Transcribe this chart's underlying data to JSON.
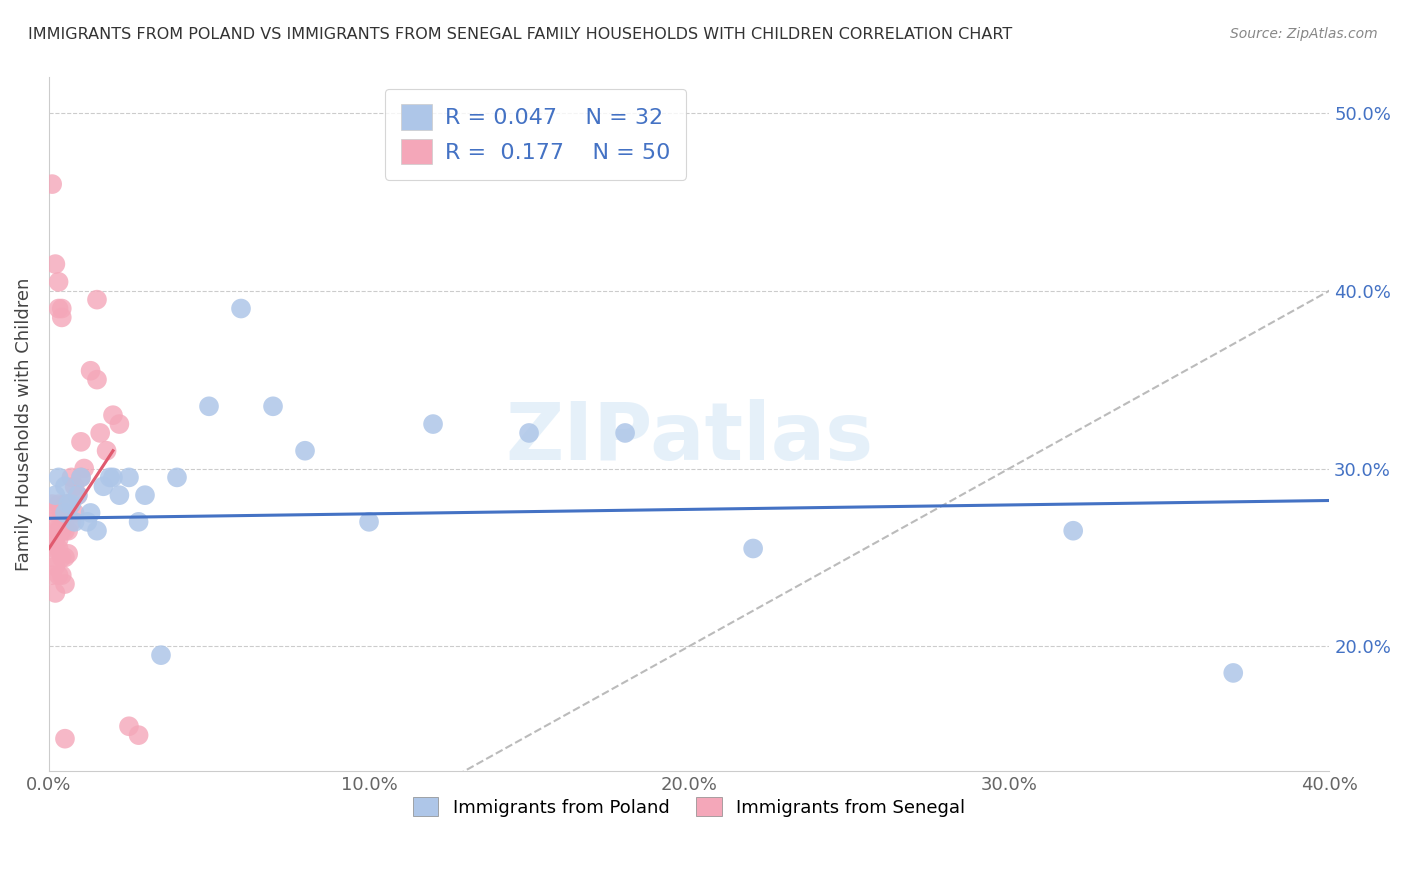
{
  "title": "IMMIGRANTS FROM POLAND VS IMMIGRANTS FROM SENEGAL FAMILY HOUSEHOLDS WITH CHILDREN CORRELATION CHART",
  "source": "Source: ZipAtlas.com",
  "ylabel": "Family Households with Children",
  "xlim": [
    0.0,
    0.4
  ],
  "ylim": [
    0.13,
    0.52
  ],
  "xticks": [
    0.0,
    0.1,
    0.2,
    0.3,
    0.4
  ],
  "yticks": [
    0.2,
    0.3,
    0.4,
    0.5
  ],
  "xtick_labels": [
    "0.0%",
    "10.0%",
    "20.0%",
    "30.0%",
    "40.0%"
  ],
  "ytick_labels": [
    "20.0%",
    "30.0%",
    "40.0%",
    "50.0%"
  ],
  "poland_color": "#aec6e8",
  "senegal_color": "#f4a7b9",
  "poland_line_color": "#4472c4",
  "senegal_line_color": "#e05a6e",
  "legend_R_poland": "0.047",
  "legend_N_poland": "32",
  "legend_R_senegal": "0.177",
  "legend_N_senegal": "50",
  "legend_label_poland": "Immigrants from Poland",
  "legend_label_senegal": "Immigrants from Senegal",
  "poland_scatter_x": [
    0.002,
    0.003,
    0.005,
    0.005,
    0.006,
    0.007,
    0.008,
    0.009,
    0.01,
    0.012,
    0.013,
    0.015,
    0.017,
    0.019,
    0.02,
    0.022,
    0.025,
    0.028,
    0.03,
    0.035,
    0.04,
    0.05,
    0.06,
    0.07,
    0.08,
    0.1,
    0.12,
    0.15,
    0.18,
    0.22,
    0.32,
    0.37
  ],
  "poland_scatter_y": [
    0.285,
    0.295,
    0.275,
    0.29,
    0.28,
    0.28,
    0.27,
    0.285,
    0.295,
    0.27,
    0.275,
    0.265,
    0.29,
    0.295,
    0.295,
    0.285,
    0.295,
    0.27,
    0.285,
    0.195,
    0.295,
    0.335,
    0.39,
    0.335,
    0.31,
    0.27,
    0.325,
    0.32,
    0.32,
    0.255,
    0.265,
    0.185
  ],
  "senegal_scatter_x": [
    0.001,
    0.001,
    0.001,
    0.001,
    0.002,
    0.002,
    0.002,
    0.002,
    0.002,
    0.002,
    0.003,
    0.003,
    0.003,
    0.003,
    0.003,
    0.004,
    0.004,
    0.004,
    0.004,
    0.005,
    0.005,
    0.005,
    0.005,
    0.006,
    0.006,
    0.006,
    0.007,
    0.007,
    0.008,
    0.008,
    0.009,
    0.01,
    0.01,
    0.011,
    0.013,
    0.015,
    0.016,
    0.018,
    0.02,
    0.022,
    0.025,
    0.028,
    0.001,
    0.002,
    0.003,
    0.003,
    0.004,
    0.004,
    0.005,
    0.015
  ],
  "senegal_scatter_y": [
    0.28,
    0.27,
    0.25,
    0.24,
    0.275,
    0.265,
    0.26,
    0.255,
    0.245,
    0.23,
    0.28,
    0.265,
    0.26,
    0.255,
    0.24,
    0.275,
    0.265,
    0.25,
    0.24,
    0.28,
    0.265,
    0.25,
    0.235,
    0.28,
    0.265,
    0.252,
    0.295,
    0.27,
    0.29,
    0.275,
    0.285,
    0.315,
    0.295,
    0.3,
    0.355,
    0.35,
    0.32,
    0.31,
    0.33,
    0.325,
    0.155,
    0.15,
    0.46,
    0.415,
    0.405,
    0.39,
    0.39,
    0.385,
    0.148,
    0.395
  ],
  "background_color": "#ffffff",
  "grid_color": "#cccccc",
  "watermark": "ZIPatlas"
}
